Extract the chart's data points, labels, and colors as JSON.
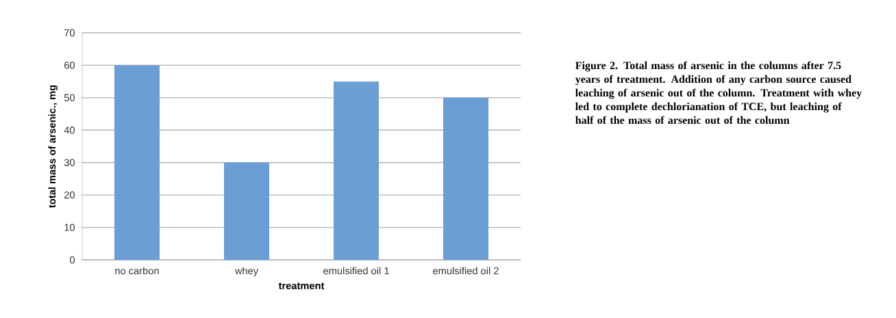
{
  "chart_data": {
    "type": "bar",
    "xlabel": "treatment",
    "ylabel": "total mass of arsenic., mg",
    "categories": [
      "no carbon",
      "whey",
      "emulsified oil 1",
      "emulsified oil 2"
    ],
    "values": [
      60,
      30,
      55,
      50
    ],
    "color": "#6a9fd6",
    "ylim": [
      0,
      70
    ],
    "yticks": [
      0,
      10,
      20,
      30,
      40,
      50,
      60,
      70
    ],
    "grid": "y",
    "annotations": [
      "**Figure 2.  Total mass of arsenic in the columns after 7.5 years of treatment. Addition of any carbon source caused leaching of arsenic out of the column. Treatment with whey led to complete dechlorianation of TCE, but leaching of half of the mass of arsenic out of the column**"
    ]
  }
}
